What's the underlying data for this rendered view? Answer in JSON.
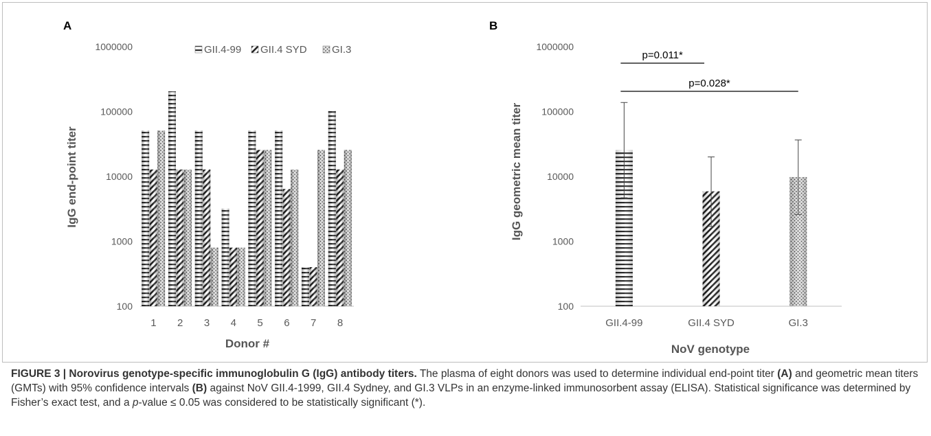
{
  "chart_data": [
    {
      "panel": "A",
      "type": "bar",
      "yscale": "log",
      "ylim": [
        100,
        1000000
      ],
      "yticks": [
        "100",
        "1000",
        "10000",
        "100000",
        "1000000"
      ],
      "xlabel": "Donor #",
      "ylabel": "IgG end-point titer",
      "legend_position": "top",
      "categories": [
        "1",
        "2",
        "3",
        "4",
        "5",
        "6",
        "7",
        "8"
      ],
      "series": [
        {
          "name": "GII.4-99",
          "pattern": "horizontal-lines",
          "values": [
            51200,
            204800,
            51200,
            3200,
            51200,
            51200,
            400,
            102400
          ]
        },
        {
          "name": "GII.4 SYD",
          "pattern": "diagonal-lines",
          "values": [
            12800,
            12800,
            12800,
            800,
            25600,
            6400,
            400,
            12800
          ]
        },
        {
          "name": "GI.3",
          "pattern": "dots",
          "values": [
            51200,
            12800,
            800,
            800,
            25600,
            12800,
            25600,
            25600
          ]
        }
      ]
    },
    {
      "panel": "B",
      "type": "bar",
      "yscale": "log",
      "ylim": [
        100,
        1000000
      ],
      "yticks": [
        "100",
        "1000",
        "10000",
        "100000",
        "1000000"
      ],
      "xlabel": "NoV genotype",
      "ylabel": "IgG geometric mean titer",
      "categories": [
        "GII.4-99",
        "GII.4 SYD",
        "GI.3"
      ],
      "values": [
        25600,
        5900,
        9800
      ],
      "patterns": [
        "horizontal-lines",
        "diagonal-lines",
        "dots"
      ],
      "error_bars": [
        [
          4700,
          138000
        ],
        [
          1700,
          20000
        ],
        [
          2600,
          36500
        ]
      ],
      "annotations": [
        {
          "text": "p=0.011*",
          "from": "GII.4-99",
          "to": "GII.4 SYD"
        },
        {
          "text": "p=0.028*",
          "from": "GII.4-99",
          "to": "GI.3"
        }
      ]
    }
  ],
  "caption": {
    "figure_label": "FIGURE 3 | Norovirus genotype-specific immunoglobulin G (IgG) antibody titers.",
    "part1": " The plasma of eight donors was used to determine individual end-point titer ",
    "refA": "(A)",
    "part2": " and geometric mean titers (GMTs) with 95% confidence intervals ",
    "refB": "(B)",
    "part3": " against NoV GII.4-1999, GII.4 Sydney, and GI.3 VLPs in an enzyme-linked immunosorbent assay (ELISA). Statistical significance was determined by Fisher’s exact test, and a ",
    "p_italic": "p",
    "part4": "-value ≤ 0.05 was considered to be statistically significant (*)."
  }
}
